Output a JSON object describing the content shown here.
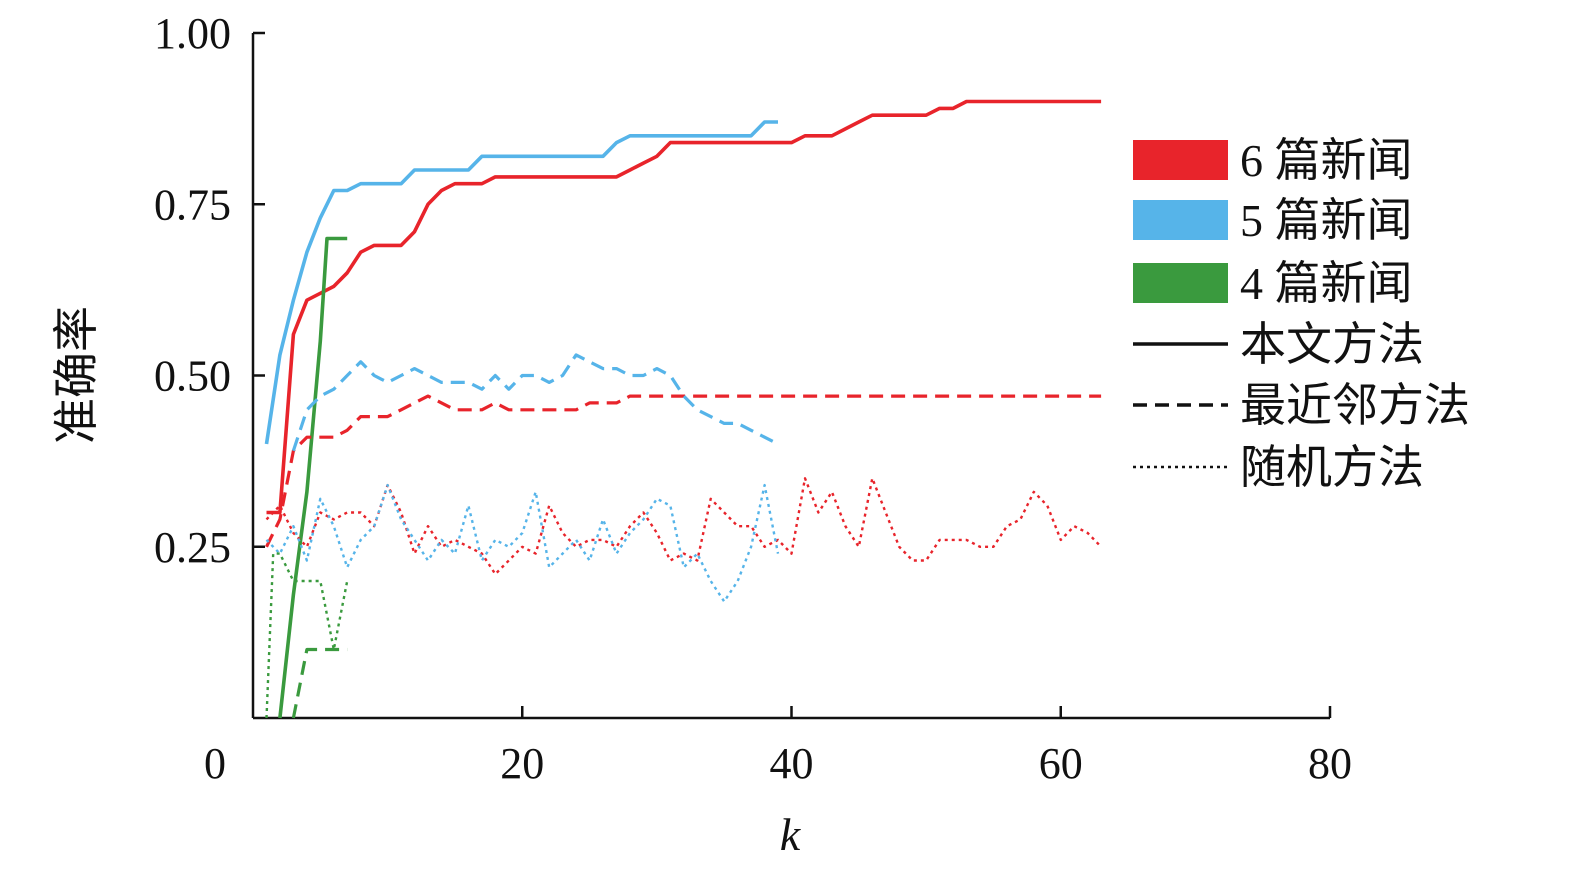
{
  "chart_data": {
    "type": "line",
    "title": "",
    "xlabel": "k",
    "ylabel": "准确率",
    "xlim": [
      0,
      80
    ],
    "ylim": [
      0,
      1.0
    ],
    "x_ticks": [
      0,
      20,
      40,
      60,
      80
    ],
    "x_tick_labels": [
      "0",
      "20",
      "40",
      "60",
      "80"
    ],
    "y_ticks": [
      0.25,
      0.5,
      0.75,
      1.0
    ],
    "y_tick_labels": [
      "0.25",
      "0.50",
      "0.75",
      "1.00"
    ],
    "grid": false,
    "legend_position": "right",
    "legend": {
      "colors": [
        {
          "label": "6 篇新闻",
          "color": "#e8242b"
        },
        {
          "label": "5 篇新闻",
          "color": "#56b4e9"
        },
        {
          "label": "4 篇新闻",
          "color": "#3a9a3e"
        }
      ],
      "styles": [
        {
          "label": "本文方法",
          "style": "solid"
        },
        {
          "label": "最近邻方法",
          "style": "dashed"
        },
        {
          "label": "随机方法",
          "style": "dotted"
        }
      ]
    },
    "series": [
      {
        "color": "#e8242b",
        "style": "solid",
        "x": [
          1,
          2,
          3,
          4,
          5,
          6,
          7,
          8,
          9,
          10,
          11,
          12,
          13,
          14,
          15,
          16,
          17,
          18,
          19,
          20,
          21,
          22,
          23,
          24,
          25,
          26,
          27,
          28,
          29,
          30,
          31,
          32,
          33,
          34,
          35,
          36,
          37,
          38,
          39,
          40,
          41,
          42,
          43,
          44,
          45,
          46,
          47,
          48,
          49,
          50,
          51,
          52,
          53,
          54,
          55,
          56,
          57,
          58,
          59,
          60,
          61,
          62,
          63
        ],
        "y": [
          0.3,
          0.3,
          0.56,
          0.61,
          0.62,
          0.63,
          0.65,
          0.68,
          0.69,
          0.69,
          0.69,
          0.71,
          0.75,
          0.77,
          0.78,
          0.78,
          0.78,
          0.79,
          0.79,
          0.79,
          0.79,
          0.79,
          0.79,
          0.79,
          0.79,
          0.79,
          0.79,
          0.8,
          0.81,
          0.82,
          0.84,
          0.84,
          0.84,
          0.84,
          0.84,
          0.84,
          0.84,
          0.84,
          0.84,
          0.84,
          0.85,
          0.85,
          0.85,
          0.86,
          0.87,
          0.88,
          0.88,
          0.88,
          0.88,
          0.88,
          0.89,
          0.89,
          0.9,
          0.9,
          0.9,
          0.9,
          0.9,
          0.9,
          0.9,
          0.9,
          0.9,
          0.9,
          0.9
        ]
      },
      {
        "color": "#56b4e9",
        "style": "solid",
        "x": [
          1,
          2,
          3,
          4,
          5,
          6,
          7,
          8,
          9,
          10,
          11,
          12,
          13,
          14,
          15,
          16,
          17,
          18,
          19,
          20,
          21,
          22,
          23,
          24,
          25,
          26,
          27,
          28,
          29,
          30,
          31,
          32,
          33,
          34,
          35,
          36,
          37,
          38,
          39
        ],
        "y": [
          0.4,
          0.53,
          0.61,
          0.68,
          0.73,
          0.77,
          0.77,
          0.78,
          0.78,
          0.78,
          0.78,
          0.8,
          0.8,
          0.8,
          0.8,
          0.8,
          0.82,
          0.82,
          0.82,
          0.82,
          0.82,
          0.82,
          0.82,
          0.82,
          0.82,
          0.82,
          0.84,
          0.85,
          0.85,
          0.85,
          0.85,
          0.85,
          0.85,
          0.85,
          0.85,
          0.85,
          0.85,
          0.87,
          0.87
        ]
      },
      {
        "color": "#3a9a3e",
        "style": "solid",
        "x": [
          2,
          3,
          4,
          5,
          5.5,
          6,
          7
        ],
        "y": [
          0.0,
          0.18,
          0.33,
          0.55,
          0.7,
          0.7,
          0.7
        ]
      },
      {
        "color": "#e8242b",
        "style": "dashed",
        "x": [
          1,
          2,
          3,
          4,
          5,
          6,
          7,
          8,
          9,
          10,
          11,
          12,
          13,
          14,
          15,
          16,
          17,
          18,
          19,
          20,
          21,
          22,
          23,
          24,
          25,
          26,
          27,
          28,
          29,
          30,
          35,
          40,
          45,
          50,
          55,
          60,
          63
        ],
        "y": [
          0.25,
          0.29,
          0.39,
          0.41,
          0.41,
          0.41,
          0.42,
          0.44,
          0.44,
          0.44,
          0.45,
          0.46,
          0.47,
          0.46,
          0.45,
          0.45,
          0.45,
          0.46,
          0.45,
          0.45,
          0.45,
          0.45,
          0.45,
          0.45,
          0.46,
          0.46,
          0.46,
          0.47,
          0.47,
          0.47,
          0.47,
          0.47,
          0.47,
          0.47,
          0.47,
          0.47,
          0.47
        ]
      },
      {
        "color": "#56b4e9",
        "style": "dashed",
        "x": [
          3,
          4,
          5,
          6,
          7,
          8,
          9,
          10,
          11,
          12,
          13,
          14,
          15,
          16,
          17,
          18,
          19,
          20,
          21,
          22,
          23,
          24,
          25,
          26,
          27,
          28,
          29,
          30,
          31,
          32,
          33,
          34,
          35,
          36,
          37,
          38,
          39
        ],
        "y": [
          0.39,
          0.45,
          0.47,
          0.48,
          0.5,
          0.52,
          0.5,
          0.49,
          0.5,
          0.51,
          0.5,
          0.49,
          0.49,
          0.49,
          0.48,
          0.5,
          0.48,
          0.5,
          0.5,
          0.49,
          0.5,
          0.53,
          0.52,
          0.51,
          0.51,
          0.5,
          0.5,
          0.51,
          0.5,
          0.47,
          0.45,
          0.44,
          0.43,
          0.43,
          0.42,
          0.41,
          0.4
        ]
      },
      {
        "color": "#3a9a3e",
        "style": "dashed",
        "x": [
          3,
          4,
          5,
          6,
          7
        ],
        "y": [
          0.0,
          0.1,
          0.1,
          0.1,
          0.1
        ]
      },
      {
        "color": "#e8242b",
        "style": "dotted",
        "x": [
          1,
          2,
          3,
          4,
          5,
          6,
          7,
          8,
          9,
          10,
          11,
          12,
          13,
          14,
          15,
          16,
          17,
          18,
          19,
          20,
          21,
          22,
          23,
          24,
          25,
          26,
          27,
          28,
          29,
          30,
          31,
          32,
          33,
          34,
          35,
          36,
          37,
          38,
          39,
          40,
          41,
          42,
          43,
          44,
          45,
          46,
          47,
          48,
          49,
          50,
          51,
          52,
          53,
          54,
          55,
          56,
          57,
          58,
          59,
          60,
          61,
          62,
          63
        ],
        "y": [
          0.29,
          0.31,
          0.27,
          0.25,
          0.3,
          0.29,
          0.3,
          0.3,
          0.28,
          0.34,
          0.3,
          0.24,
          0.28,
          0.25,
          0.26,
          0.25,
          0.24,
          0.21,
          0.23,
          0.25,
          0.24,
          0.31,
          0.27,
          0.25,
          0.26,
          0.26,
          0.25,
          0.28,
          0.3,
          0.27,
          0.23,
          0.24,
          0.23,
          0.32,
          0.3,
          0.28,
          0.28,
          0.25,
          0.26,
          0.24,
          0.35,
          0.3,
          0.33,
          0.28,
          0.25,
          0.35,
          0.3,
          0.25,
          0.23,
          0.23,
          0.26,
          0.26,
          0.26,
          0.25,
          0.25,
          0.28,
          0.29,
          0.33,
          0.31,
          0.26,
          0.28,
          0.27,
          0.25
        ]
      },
      {
        "color": "#56b4e9",
        "style": "dotted",
        "x": [
          1,
          2,
          3,
          4,
          5,
          6,
          7,
          8,
          9,
          10,
          11,
          12,
          13,
          14,
          15,
          16,
          17,
          18,
          19,
          20,
          21,
          22,
          23,
          24,
          25,
          26,
          27,
          28,
          29,
          30,
          31,
          32,
          33,
          34,
          35,
          36,
          37,
          38,
          39
        ],
        "y": [
          0.26,
          0.24,
          0.28,
          0.23,
          0.32,
          0.28,
          0.22,
          0.26,
          0.28,
          0.34,
          0.29,
          0.26,
          0.23,
          0.26,
          0.24,
          0.31,
          0.23,
          0.26,
          0.25,
          0.27,
          0.33,
          0.22,
          0.24,
          0.26,
          0.23,
          0.29,
          0.24,
          0.27,
          0.29,
          0.32,
          0.31,
          0.22,
          0.24,
          0.2,
          0.17,
          0.2,
          0.25,
          0.34,
          0.24
        ]
      },
      {
        "color": "#3a9a3e",
        "style": "dotted",
        "x": [
          1,
          1.5,
          2,
          3,
          4,
          5,
          6,
          7
        ],
        "y": [
          0.0,
          0.24,
          0.24,
          0.2,
          0.2,
          0.2,
          0.1,
          0.2
        ]
      }
    ]
  }
}
